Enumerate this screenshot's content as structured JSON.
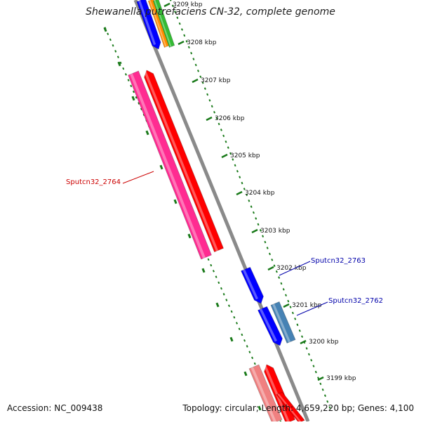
{
  "title": "Shewanella putrefaciens CN-32, complete genome",
  "footer": {
    "accession": "Accession: NC_009438",
    "summary": "Topology: circular; Length: 4,659,220 bp; Genes: 4,100"
  },
  "ticks": [
    {
      "label": "3209 kbp"
    },
    {
      "label": "3208 kbp"
    },
    {
      "label": "3207 kbp"
    },
    {
      "label": "3206 kbp"
    },
    {
      "label": "3205 kbp"
    },
    {
      "label": "3204 kbp"
    },
    {
      "label": "3203 kbp"
    },
    {
      "label": "3202 kbp"
    },
    {
      "label": "3201 kbp"
    },
    {
      "label": "3200 kbp"
    },
    {
      "label": "3199 kbp"
    }
  ],
  "gene_labels": [
    {
      "text": "Sputcn32_2764",
      "color": "#cc0000"
    },
    {
      "text": "Sputcn32_2763",
      "color": "#0000aa"
    },
    {
      "text": "Sputcn32_2762",
      "color": "#0000aa"
    }
  ],
  "colors": {
    "backbone": "#8a8a8a",
    "tick": "#1a7a1a",
    "cds_forward": "#ff0000",
    "cds_reverse": "#ff2b91",
    "rna": "#0000ff",
    "misc": "#4682b4",
    "pseudo_light": "#f08080",
    "orange": "#ff8c00",
    "green": "#33bb33"
  }
}
